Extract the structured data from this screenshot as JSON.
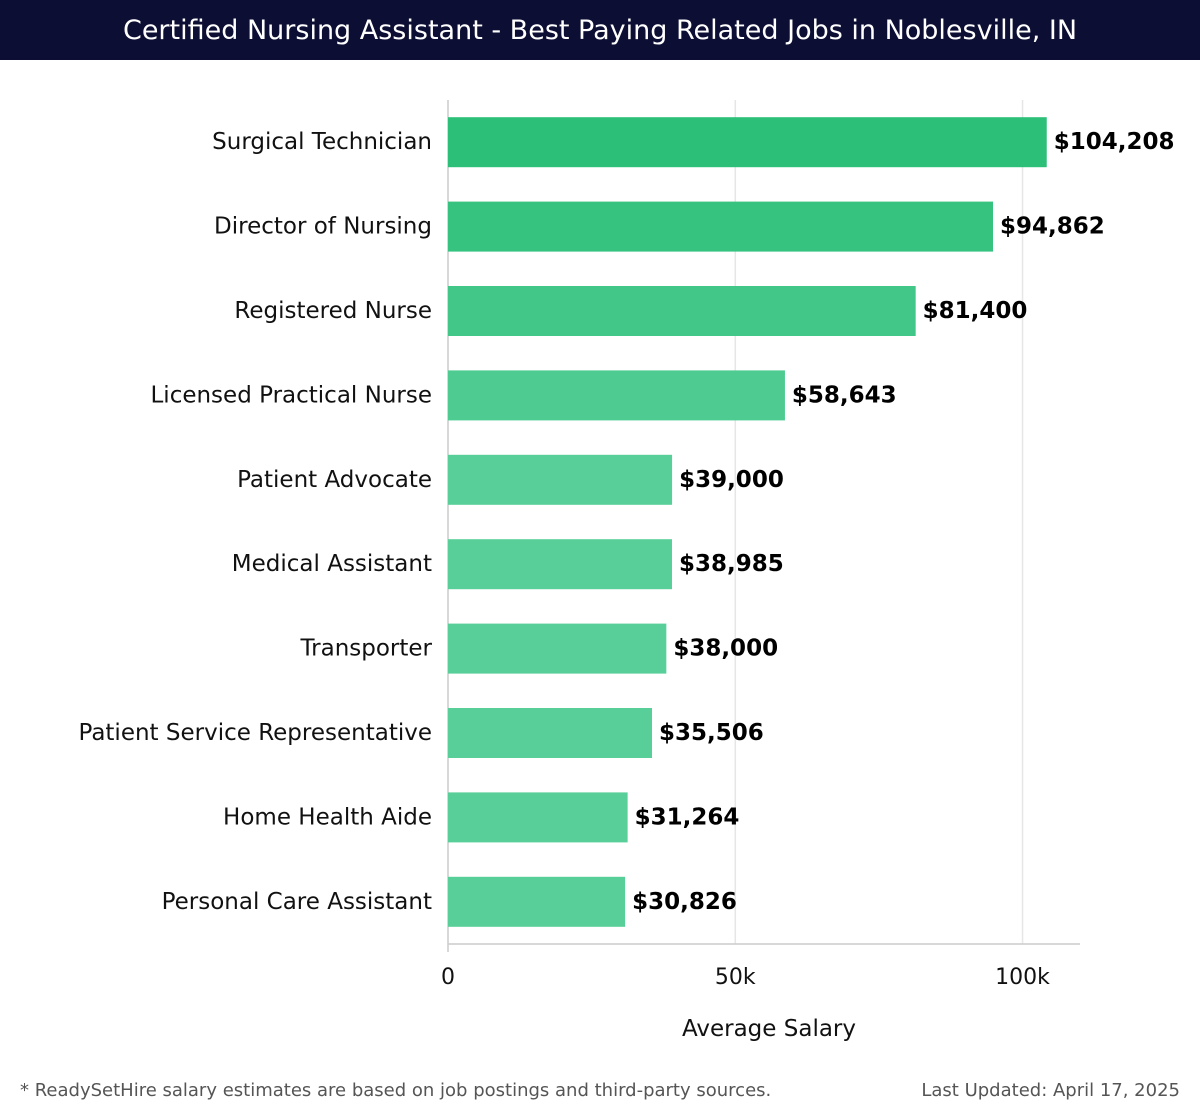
{
  "header": {
    "title": "Certified Nursing Assistant - Best Paying Related Jobs in Noblesville, IN"
  },
  "chart_data": {
    "type": "bar",
    "orientation": "horizontal",
    "title": "Certified Nursing Assistant - Best Paying Related Jobs in Noblesville, IN",
    "categories": [
      "Surgical Technician",
      "Director of Nursing",
      "Registered Nurse",
      "Licensed Practical Nurse",
      "Patient Advocate",
      "Medical Assistant",
      "Transporter",
      "Patient Service Representative",
      "Home Health Aide",
      "Personal Care Assistant"
    ],
    "values": [
      104208,
      94862,
      81400,
      58643,
      39000,
      38985,
      38000,
      35506,
      31264,
      30826
    ],
    "value_labels": [
      "$104,208",
      "$94,862",
      "$81,400",
      "$58,643",
      "$39,000",
      "$38,985",
      "$38,000",
      "$35,506",
      "$31,264",
      "$30,826"
    ],
    "xlabel": "Average Salary",
    "ylabel": "",
    "xlim": [
      0,
      110000
    ],
    "xticks": [
      0,
      50000,
      100000
    ],
    "xtick_labels": [
      "0",
      "50k",
      "100k"
    ],
    "grid": true,
    "colors": {
      "bar_start": "#2bbf78",
      "bar_end": "#58cf98",
      "grid": "#e6e6e6",
      "axis": "#cccccc"
    }
  },
  "footer": {
    "note": "* ReadySetHire salary estimates are based on job postings and third-party sources.",
    "updated": "Last Updated: April 17, 2025"
  }
}
